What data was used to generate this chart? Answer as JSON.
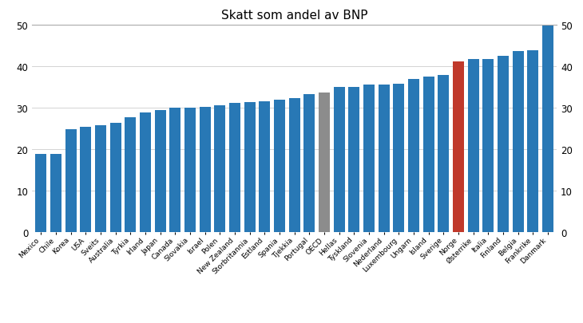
{
  "title": "Skatt som andel av BNP",
  "categories": [
    "Mexico",
    "Chile",
    "Korea",
    "USA",
    "Sveits",
    "Australia",
    "Tyrkia",
    "Irland",
    "Japan",
    "Canada",
    "Slovakia",
    "Israel",
    "Polen",
    "New Zealand",
    "Storbritannia",
    "Estland",
    "Spania",
    "Tjekkia",
    "Portugal",
    "OECD",
    "Hellas",
    "Tyskland",
    "Slovenia",
    "Nederland",
    "Luxembourg",
    "Ungarn",
    "Island",
    "Sverige",
    "Norge",
    "Østerrike",
    "Italia",
    "Finland",
    "Belgia",
    "Frankrike",
    "Danmark"
  ],
  "values": [
    18.9,
    19.0,
    24.8,
    25.4,
    25.8,
    26.4,
    27.7,
    28.9,
    29.5,
    30.0,
    30.0,
    30.2,
    30.6,
    31.3,
    31.5,
    31.7,
    32.1,
    32.4,
    33.4,
    33.8,
    35.0,
    35.0,
    35.7,
    35.7,
    35.8,
    37.0,
    37.6,
    37.9,
    41.3,
    41.8,
    41.9,
    42.6,
    43.7,
    44.0,
    49.9
  ],
  "bar_colors_special": {
    "OECD": "#8c8c8c",
    "Norge": "#c0392b"
  },
  "default_color": "#2878b5",
  "ylim": [
    0,
    50
  ],
  "yticks": [
    0,
    10,
    20,
    30,
    40,
    50
  ],
  "background_color": "#ffffff",
  "title_fontsize": 11,
  "xlabel_fontsize": 6.5,
  "ylabel_fontsize": 8.5,
  "bar_width": 0.75,
  "grid_color": "#cccccc",
  "grid_linewidth": 0.6,
  "top_line_color": "#aaaaaa",
  "spine_color": "#aaaaaa"
}
